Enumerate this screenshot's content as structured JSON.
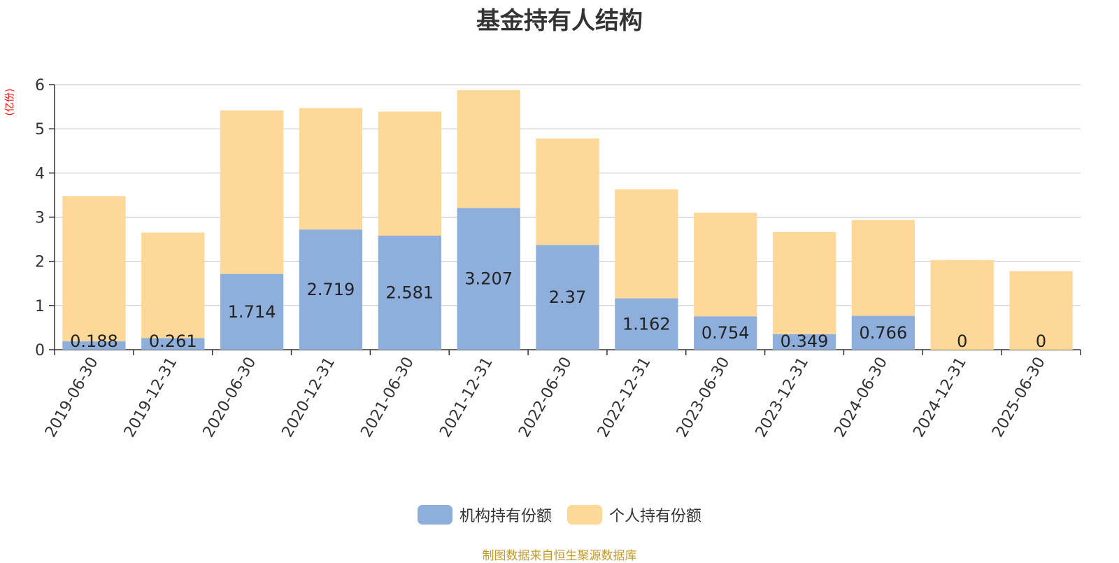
{
  "title": "基金持有人结构",
  "unit_label": "(亿份)",
  "source": "制图数据来自恒生聚源数据库",
  "colors": {
    "institutional": "#8eaedb",
    "individual": "#fdd898",
    "axis": "#333333",
    "grid": "#cccccc"
  },
  "chart_data": {
    "type": "bar",
    "stacked": true,
    "title": "基金持有人结构",
    "ylabel": "(亿份)",
    "ylim": [
      0,
      6
    ],
    "yticks": [
      0,
      1,
      2,
      3,
      4,
      5,
      6
    ],
    "grid": true,
    "legend_position": "bottom",
    "categories": [
      "2019-06-30",
      "2019-12-31",
      "2020-06-30",
      "2020-12-31",
      "2021-06-30",
      "2021-12-31",
      "2022-06-30",
      "2022-12-31",
      "2023-06-30",
      "2023-12-31",
      "2024-06-30",
      "2024-12-31",
      "2025-06-30"
    ],
    "series": [
      {
        "name": "机构持有份额",
        "values": [
          0.188,
          0.261,
          1.714,
          2.719,
          2.581,
          3.207,
          2.37,
          1.162,
          0.754,
          0.349,
          0.766,
          0,
          0
        ],
        "labels": [
          "0.188",
          "0.261",
          "1.714",
          "2.719",
          "2.581",
          "3.207",
          "2.37",
          "1.162",
          "0.754",
          "0.349",
          "0.766",
          "0",
          "0"
        ]
      },
      {
        "name": "个人持有份额",
        "values": [
          3.29,
          2.39,
          3.7,
          2.75,
          2.81,
          2.67,
          2.41,
          2.47,
          2.35,
          2.31,
          2.17,
          2.03,
          1.78
        ]
      }
    ]
  }
}
